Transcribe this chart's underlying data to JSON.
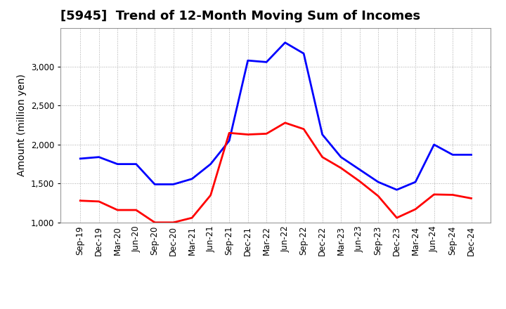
{
  "title": "[5945]  Trend of 12-Month Moving Sum of Incomes",
  "ylabel": "Amount (million yen)",
  "x_labels": [
    "Sep-19",
    "Dec-19",
    "Mar-20",
    "Jun-20",
    "Sep-20",
    "Dec-20",
    "Mar-21",
    "Jun-21",
    "Sep-21",
    "Dec-21",
    "Mar-22",
    "Jun-22",
    "Sep-22",
    "Dec-22",
    "Mar-23",
    "Jun-23",
    "Sep-23",
    "Dec-23",
    "Mar-24",
    "Jun-24",
    "Sep-24",
    "Dec-24"
  ],
  "ordinary_income": [
    1820,
    1840,
    1750,
    1750,
    1490,
    1490,
    1560,
    1750,
    2050,
    3080,
    3060,
    3310,
    3170,
    2130,
    1840,
    1680,
    1520,
    1420,
    1520,
    2000,
    1870,
    1870
  ],
  "net_income": [
    1280,
    1270,
    1160,
    1160,
    1000,
    1000,
    1060,
    1350,
    2150,
    2130,
    2140,
    2280,
    2200,
    1840,
    1700,
    1530,
    1340,
    1060,
    1170,
    1360,
    1355,
    1310
  ],
  "ordinary_color": "#0000FF",
  "net_color": "#FF0000",
  "ylim": [
    1000,
    3500
  ],
  "yticks": [
    1000,
    1500,
    2000,
    2500,
    3000
  ],
  "background_color": "#FFFFFF",
  "plot_bg_color": "#FFFFFF",
  "grid_color": "#AAAAAA",
  "title_fontsize": 13,
  "axis_label_fontsize": 10,
  "tick_fontsize": 8.5,
  "legend_fontsize": 10,
  "line_width": 2.0
}
